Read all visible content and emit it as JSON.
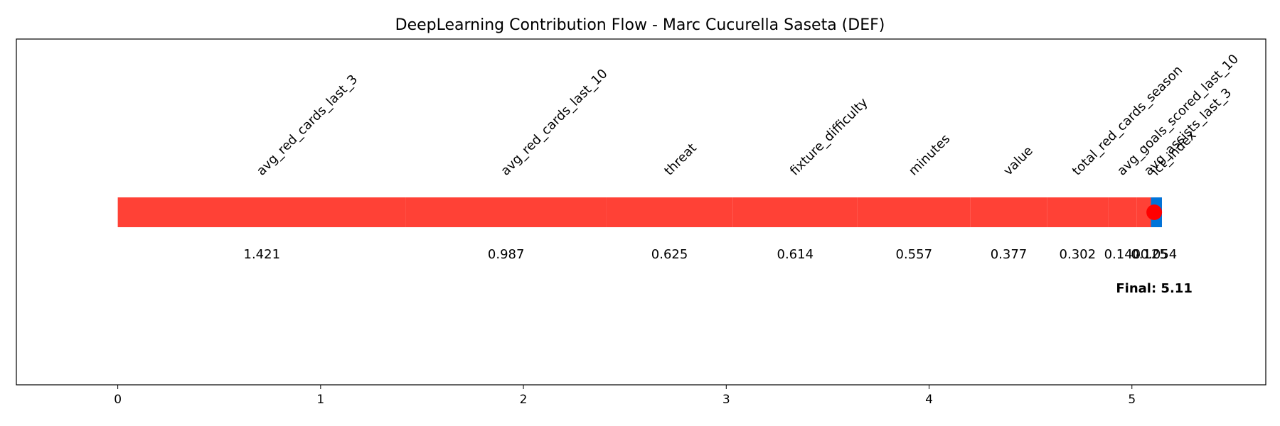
{
  "chart_data": {
    "type": "bar",
    "title": "DeepLearning Contribution Flow - Marc Cucurella Saseta (DEF)",
    "xlabel": "",
    "ylabel": "",
    "xlim": [
      -0.5,
      5.66
    ],
    "xticks": [
      "0",
      "1",
      "2",
      "3",
      "4",
      "5"
    ],
    "grid": false,
    "colors": {
      "positive": "#ff4136",
      "negative": "#0074d9",
      "marker": "#ff0000"
    },
    "start": 0,
    "final": 5.11,
    "final_label": "Final: 5.11",
    "contributions": [
      {
        "feature": "avg_red_cards_last_3",
        "value": 1.421,
        "label": "1.421"
      },
      {
        "feature": "avg_red_cards_last_10",
        "value": 0.987,
        "label": "0.987"
      },
      {
        "feature": "threat",
        "value": 0.625,
        "label": "0.625"
      },
      {
        "feature": "fixture_difficulty",
        "value": 0.614,
        "label": "0.614"
      },
      {
        "feature": "minutes",
        "value": 0.557,
        "label": "0.557"
      },
      {
        "feature": "value",
        "value": 0.377,
        "label": "0.377"
      },
      {
        "feature": "total_red_cards_season",
        "value": 0.302,
        "label": "0.302"
      },
      {
        "feature": "avg_goals_scored_last_10",
        "value": 0.14,
        "label": "0.140"
      },
      {
        "feature": "avg_assists_last_3",
        "value": 0.125,
        "label": "0.125"
      },
      {
        "feature": "ict_index",
        "value": -0.054,
        "label": "-0.054"
      }
    ]
  }
}
